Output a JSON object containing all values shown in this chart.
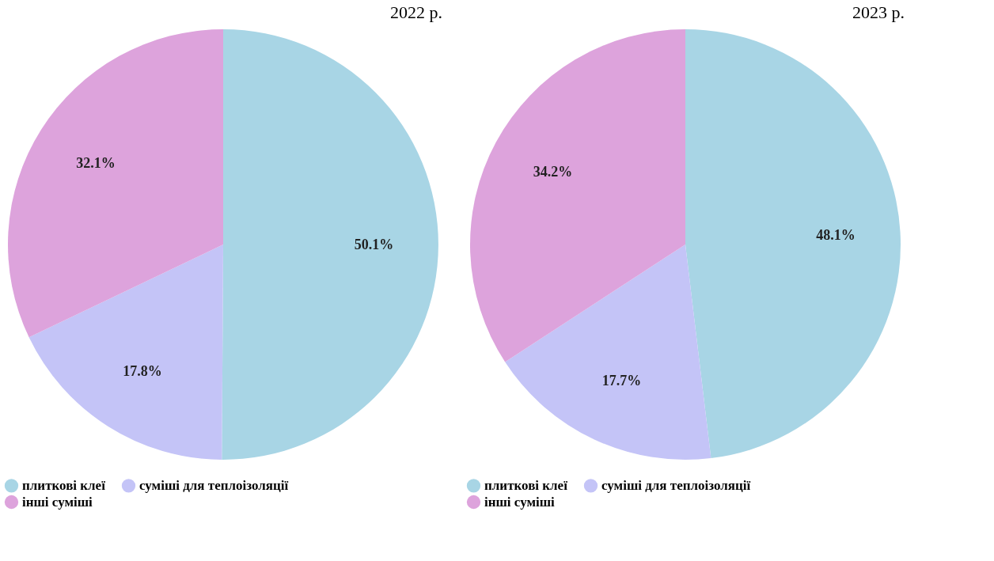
{
  "chart_data": [
    {
      "type": "pie",
      "title": "2022 р.",
      "categories": [
        "плиткові клеї",
        "суміші для теплоізоляції",
        "інші суміші"
      ],
      "values": [
        50.1,
        17.8,
        32.1
      ],
      "colors": [
        "#a8d5e5",
        "#c4c4f7",
        "#dda3dc"
      ],
      "value_labels": [
        "50.1%",
        "17.8%",
        "32.1%"
      ],
      "legend": "bottom"
    },
    {
      "type": "pie",
      "title": "2023 р.",
      "categories": [
        "плиткові клеї",
        "суміші для теплоізоляції",
        "інші суміші"
      ],
      "values": [
        48.1,
        17.7,
        34.2
      ],
      "colors": [
        "#a8d5e5",
        "#c4c4f7",
        "#dda3dc"
      ],
      "value_labels": [
        "48.1%",
        "17.7%",
        "34.2%"
      ],
      "legend": "bottom"
    }
  ]
}
